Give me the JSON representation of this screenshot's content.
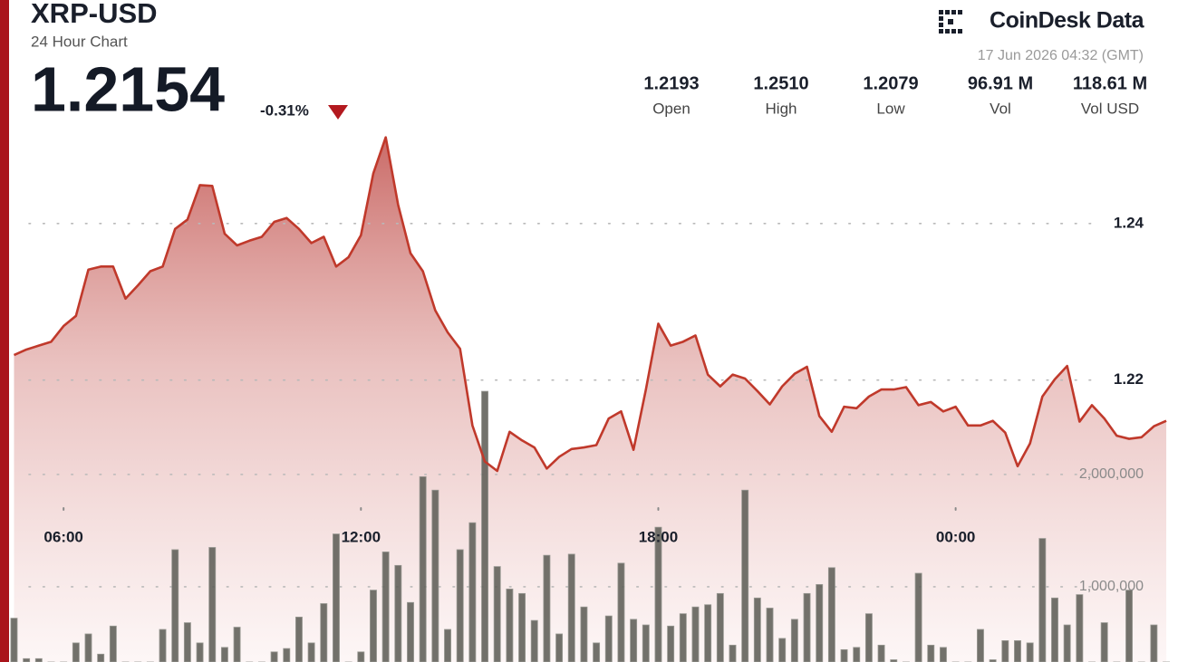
{
  "header": {
    "symbol": "XRP-USD",
    "subtitle": "24 Hour Chart",
    "price": "1.2154",
    "change": "-0.31%",
    "brand": "CoinDesk Data",
    "timestamp": "17 Jun 2026 04:32 (GMT)",
    "stats": [
      {
        "value": "1.2193",
        "label": "Open"
      },
      {
        "value": "1.2510",
        "label": "High"
      },
      {
        "value": "1.2079",
        "label": "Low"
      },
      {
        "value": "96.91 M",
        "label": "Vol"
      },
      {
        "value": "118.61 M",
        "label": "Vol USD"
      }
    ]
  },
  "chart_data": {
    "type": "area",
    "x": [
      5,
      5.25,
      5.5,
      5.75,
      6,
      6.25,
      6.5,
      6.75,
      7,
      7.25,
      7.5,
      7.75,
      8,
      8.25,
      8.5,
      8.75,
      9,
      9.25,
      9.5,
      9.75,
      10,
      10.25,
      10.5,
      10.75,
      11,
      11.25,
      11.5,
      11.75,
      12,
      12.25,
      12.5,
      12.75,
      13,
      13.25,
      13.5,
      13.75,
      14,
      14.25,
      14.5,
      14.75,
      15,
      15.25,
      15.5,
      15.75,
      16,
      16.25,
      16.5,
      16.75,
      17,
      17.25,
      17.5,
      17.75,
      18,
      18.25,
      18.5,
      18.75,
      19,
      19.25,
      19.5,
      19.75,
      20,
      20.25,
      20.5,
      20.75,
      21,
      21.25,
      21.5,
      21.75,
      22,
      22.25,
      22.5,
      22.75,
      23,
      23.25,
      23.5,
      23.75,
      24,
      24.25,
      24.5,
      24.75,
      25,
      25.25,
      25.5,
      25.75,
      26,
      26.25,
      26.5,
      26.75,
      27,
      27.25,
      27.5,
      27.75,
      28,
      28.25
    ],
    "xlim": [
      4.9,
      28.45
    ],
    "xticks": [
      {
        "value": 6,
        "label": "06:00"
      },
      {
        "value": 12,
        "label": "12:00"
      },
      {
        "value": 18,
        "label": "18:00"
      },
      {
        "value": 24,
        "label": "00:00"
      }
    ],
    "ylim": [
      1.184,
      1.2616
    ],
    "yticks": [
      1.22,
      1.24
    ],
    "y2lim": [
      330000,
      5740000
    ],
    "y2ticks": [
      {
        "value": 1000000,
        "label": "1,000,000"
      },
      {
        "value": 2000000,
        "label": "2,000,000"
      }
    ],
    "grid": true,
    "series": [
      {
        "color": "#c0392b",
        "values": [
          1.2232,
          1.2239,
          1.2244,
          1.2249,
          1.2269,
          1.2282,
          1.2341,
          1.2345,
          1.2345,
          1.2304,
          1.2321,
          1.2339,
          1.2345,
          1.2393,
          1.2405,
          1.2449,
          1.2448,
          1.2387,
          1.2372,
          1.2378,
          1.2383,
          1.2402,
          1.2407,
          1.2393,
          1.2375,
          1.2383,
          1.2345,
          1.2357,
          1.2385,
          1.2464,
          1.251,
          1.2424,
          1.2362,
          1.2339,
          1.2289,
          1.2261,
          1.224,
          1.2142,
          1.2096,
          1.2084,
          1.2134,
          1.2123,
          1.2114,
          1.2087,
          1.2102,
          1.2112,
          1.2114,
          1.2117,
          1.2151,
          1.216,
          1.2111,
          1.2188,
          1.2272,
          1.2244,
          1.2249,
          1.2257,
          1.2207,
          1.2192,
          1.2207,
          1.2202,
          1.2186,
          1.2169,
          1.2192,
          1.2208,
          1.2217,
          1.2154,
          1.2134,
          1.2166,
          1.2164,
          1.2179,
          1.2188,
          1.2188,
          1.2191,
          1.2168,
          1.2172,
          1.216,
          1.2166,
          1.2142,
          1.2142,
          1.2148,
          1.2133,
          1.209,
          1.2119,
          1.2179,
          1.2201,
          1.2218,
          1.2147,
          1.2168,
          1.2151,
          1.2129,
          1.2125,
          1.2127,
          1.2141,
          1.2148
        ]
      },
      {
        "type": "bar",
        "axis": "y2",
        "color": "#5f5f58",
        "values": [
          720000,
          360000,
          360000,
          250000,
          250000,
          500000,
          580000,
          400000,
          650000,
          280000,
          280000,
          300000,
          620000,
          1330000,
          680000,
          500000,
          1350000,
          460000,
          640000,
          300000,
          300000,
          420000,
          450000,
          730000,
          500000,
          850000,
          1470000,
          300000,
          420000,
          970000,
          1310000,
          1190000,
          860000,
          1980000,
          1860000,
          620000,
          1330000,
          1570000,
          2740000,
          1180000,
          980000,
          940000,
          700000,
          1280000,
          580000,
          1290000,
          820000,
          500000,
          740000,
          1210000,
          710000,
          660000,
          1530000,
          650000,
          760000,
          820000,
          840000,
          940000,
          480000,
          1860000,
          900000,
          810000,
          540000,
          710000,
          940000,
          1020000,
          1170000,
          440000,
          460000,
          760000,
          480000,
          350000,
          300000,
          1120000,
          480000,
          460000,
          300000,
          300000,
          620000,
          350000,
          520000,
          520000,
          500000,
          1430000,
          900000,
          660000,
          930000,
          300000,
          680000,
          300000,
          970000,
          300000,
          660000,
          300000
        ]
      }
    ]
  }
}
